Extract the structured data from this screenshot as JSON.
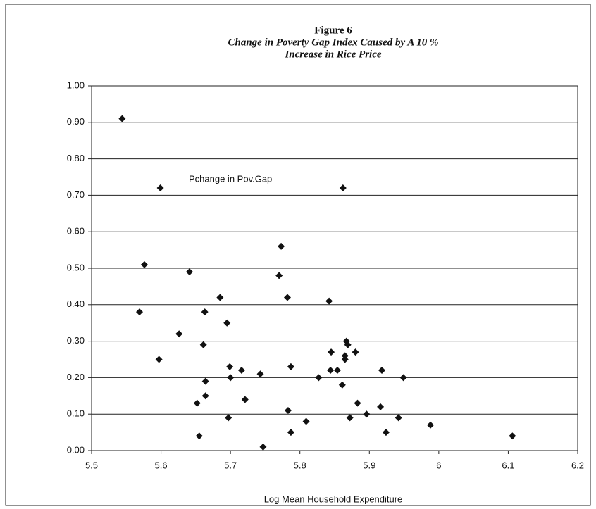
{
  "chart_data": {
    "type": "scatter",
    "title": "Figure 6",
    "subtitle": [
      "Change in Poverty Gap Index Caused by A 10 %",
      "Increase in Rice Price"
    ],
    "annotation": "Pchange in Pov.Gap",
    "x_label": "Log Mean Household Expenditure",
    "color": "#111111",
    "grid": true,
    "x": [
      5.544,
      5.599,
      5.862,
      5.576,
      5.773,
      5.77,
      5.641,
      5.685,
      5.782,
      5.842,
      5.569,
      5.663,
      5.695,
      5.626,
      5.661,
      5.597,
      5.867,
      5.869,
      5.845,
      5.88,
      5.865,
      5.865,
      5.664,
      5.699,
      5.716,
      5.7,
      5.743,
      5.787,
      5.827,
      5.844,
      5.854,
      5.861,
      5.918,
      5.949,
      5.664,
      5.652,
      5.721,
      5.883,
      5.916,
      5.783,
      5.697,
      5.872,
      5.896,
      5.942,
      5.809,
      5.988,
      5.787,
      5.924,
      5.655,
      6.106,
      5.747
    ],
    "values": [
      0.91,
      0.72,
      0.72,
      0.51,
      0.56,
      0.48,
      0.49,
      0.42,
      0.42,
      0.41,
      0.38,
      0.38,
      0.35,
      0.32,
      0.29,
      0.25,
      0.3,
      0.29,
      0.27,
      0.27,
      0.26,
      0.25,
      0.19,
      0.23,
      0.22,
      0.2,
      0.21,
      0.23,
      0.2,
      0.22,
      0.22,
      0.18,
      0.22,
      0.2,
      0.15,
      0.13,
      0.14,
      0.13,
      0.12,
      0.11,
      0.09,
      0.09,
      0.1,
      0.09,
      0.08,
      0.07,
      0.05,
      0.05,
      0.04,
      0.04,
      0.01
    ],
    "xlim": [
      5.5,
      6.2
    ],
    "xticks": [
      5.5,
      5.6,
      5.7,
      5.8,
      5.9,
      6,
      6.1,
      6.2
    ],
    "ylim": [
      0,
      1
    ],
    "yticks": [
      {
        "value": 0,
        "label": "0.00"
      },
      {
        "value": 0.1,
        "label": "0.10"
      },
      {
        "value": 0.2,
        "label": "0.20"
      },
      {
        "value": 0.3,
        "label": "0.30"
      },
      {
        "value": 0.4,
        "label": "0.40"
      },
      {
        "value": 0.5,
        "label": "0.50"
      },
      {
        "value": 0.6,
        "label": "0.60"
      },
      {
        "value": 0.7,
        "label": "0.70"
      },
      {
        "value": 0.8,
        "label": "0.80"
      },
      {
        "value": 0.9,
        "label": "0.90"
      },
      {
        "value": 1,
        "label": "1.00"
      }
    ]
  }
}
